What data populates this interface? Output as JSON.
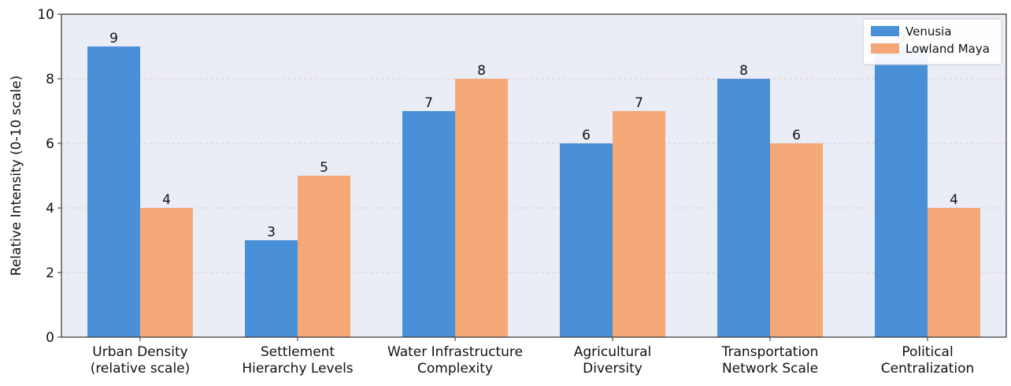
{
  "chart_data": {
    "type": "bar",
    "title": "",
    "xlabel": "",
    "ylabel": "Relative Intensity (0-10 scale)",
    "ylim": [
      0,
      10
    ],
    "yticks": [
      0,
      2,
      4,
      6,
      8,
      10
    ],
    "grid": true,
    "legend_position": "top-right",
    "categories": [
      [
        "Urban Density",
        "(relative scale)"
      ],
      [
        "Settlement",
        "Hierarchy Levels"
      ],
      [
        "Water Infrastructure",
        "Complexity"
      ],
      [
        "Agricultural",
        "Diversity"
      ],
      [
        "Transportation",
        "Network Scale"
      ],
      [
        "Political",
        "Centralization"
      ]
    ],
    "series": [
      {
        "name": "Venusia",
        "color": "#4a90d9",
        "values": [
          9,
          3,
          7,
          6,
          8,
          9
        ]
      },
      {
        "name": "Lowland Maya",
        "color": "#f5a877",
        "values": [
          4,
          5,
          8,
          7,
          6,
          4
        ]
      }
    ],
    "colors": {
      "plot_background": "#eaedf5",
      "gridline": "#e7c9d2",
      "axis": "#333333"
    }
  }
}
